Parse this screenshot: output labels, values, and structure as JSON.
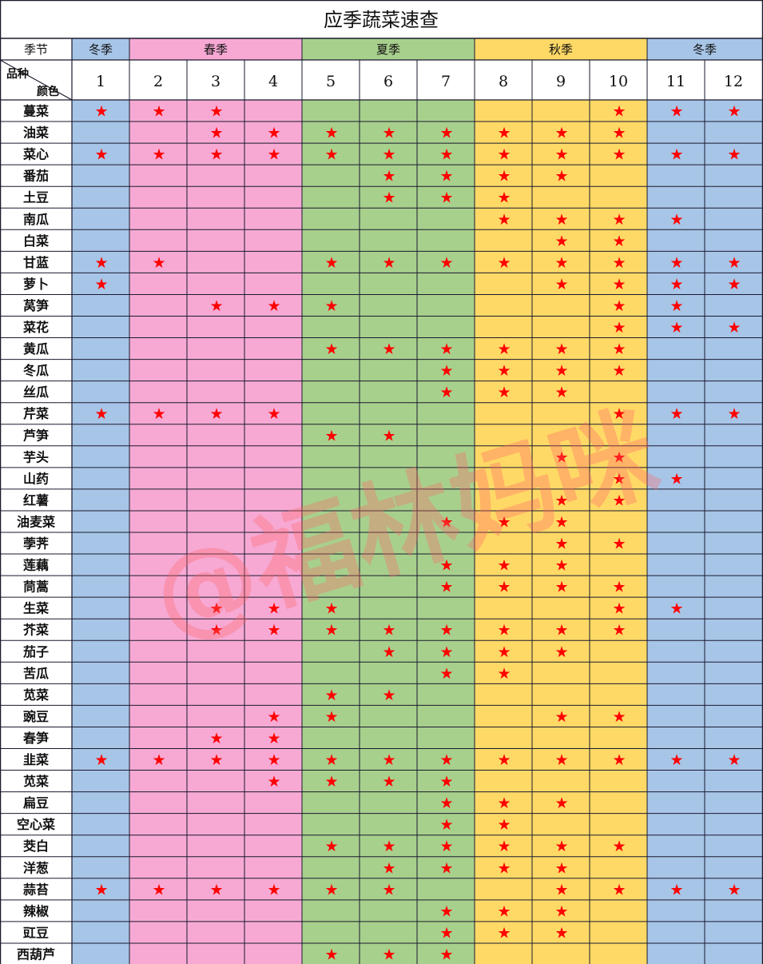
{
  "title": "应季蔬菜速查",
  "header": {
    "season_label": "季节",
    "variety_label": "品种",
    "color_label": "颜色"
  },
  "seasons": [
    {
      "label": "冬季",
      "months": [
        1
      ],
      "color": "#a7c5e7"
    },
    {
      "label": "春季",
      "months": [
        2,
        3,
        4
      ],
      "color": "#f7a9d4"
    },
    {
      "label": "夏季",
      "months": [
        5,
        6,
        7
      ],
      "color": "#a8d08d"
    },
    {
      "label": "秋季",
      "months": [
        8,
        9,
        10
      ],
      "color": "#ffd966"
    },
    {
      "label": "冬季",
      "months": [
        11,
        12
      ],
      "color": "#a7c5e7"
    }
  ],
  "months": [
    "1",
    "2",
    "3",
    "4",
    "5",
    "6",
    "7",
    "8",
    "9",
    "10",
    "11",
    "12"
  ],
  "vegetables": [
    {
      "name": "蔓菜",
      "months": [
        1,
        2,
        3,
        10,
        11,
        12
      ]
    },
    {
      "name": "油菜",
      "months": [
        3,
        4,
        5,
        6,
        7,
        8,
        9,
        10
      ]
    },
    {
      "name": "菜心",
      "months": [
        1,
        2,
        3,
        4,
        5,
        6,
        7,
        8,
        9,
        10,
        11,
        12
      ]
    },
    {
      "name": "番茄",
      "months": [
        6,
        7,
        8,
        9
      ]
    },
    {
      "name": "土豆",
      "months": [
        6,
        7,
        8
      ]
    },
    {
      "name": "南瓜",
      "months": [
        8,
        9,
        10,
        11
      ]
    },
    {
      "name": "白菜",
      "months": [
        9,
        10
      ]
    },
    {
      "name": "甘蓝",
      "months": [
        1,
        2,
        5,
        6,
        7,
        8,
        9,
        10,
        11,
        12
      ]
    },
    {
      "name": "萝卜",
      "months": [
        1,
        9,
        10,
        11,
        12
      ]
    },
    {
      "name": "莴笋",
      "months": [
        3,
        4,
        5,
        10,
        11
      ]
    },
    {
      "name": "菜花",
      "months": [
        10,
        11,
        12
      ]
    },
    {
      "name": "黄瓜",
      "months": [
        5,
        6,
        7,
        8,
        9,
        10
      ]
    },
    {
      "name": "冬瓜",
      "months": [
        7,
        8,
        9,
        10
      ]
    },
    {
      "name": "丝瓜",
      "months": [
        7,
        8,
        9
      ]
    },
    {
      "name": "芹菜",
      "months": [
        1,
        2,
        3,
        4,
        10,
        11,
        12
      ]
    },
    {
      "name": "芦笋",
      "months": [
        5,
        6
      ]
    },
    {
      "name": "芋头",
      "months": [
        9,
        10
      ]
    },
    {
      "name": "山药",
      "months": [
        10,
        11
      ]
    },
    {
      "name": "红薯",
      "months": [
        9,
        10
      ]
    },
    {
      "name": "油麦菜",
      "months": [
        7,
        8,
        9
      ]
    },
    {
      "name": "荸荠",
      "months": [
        9,
        10
      ]
    },
    {
      "name": "莲藕",
      "months": [
        7,
        8,
        9
      ]
    },
    {
      "name": "茼蒿",
      "months": [
        7,
        8,
        9,
        10
      ]
    },
    {
      "name": "生菜",
      "months": [
        3,
        4,
        5,
        10,
        11
      ]
    },
    {
      "name": "芥菜",
      "months": [
        3,
        4,
        5,
        6,
        7,
        8,
        9,
        10
      ]
    },
    {
      "name": "茄子",
      "months": [
        6,
        7,
        8,
        9
      ]
    },
    {
      "name": "苦瓜",
      "months": [
        7,
        8
      ]
    },
    {
      "name": "苋菜",
      "months": [
        5,
        6
      ]
    },
    {
      "name": "豌豆",
      "months": [
        4,
        5,
        9,
        10
      ]
    },
    {
      "name": "春笋",
      "months": [
        3,
        4
      ]
    },
    {
      "name": "韭菜",
      "months": [
        1,
        2,
        3,
        4,
        5,
        6,
        7,
        8,
        9,
        10,
        11,
        12
      ]
    },
    {
      "name": "苋菜",
      "months": [
        4,
        5,
        6,
        7
      ]
    },
    {
      "name": "扁豆",
      "months": [
        7,
        8,
        9
      ]
    },
    {
      "name": "空心菜",
      "months": [
        7,
        8
      ]
    },
    {
      "name": "茭白",
      "months": [
        5,
        6,
        7,
        8,
        9,
        10
      ]
    },
    {
      "name": "洋葱",
      "months": [
        6,
        7,
        8,
        9
      ]
    },
    {
      "name": "蒜苔",
      "months": [
        1,
        2,
        3,
        4,
        5,
        6,
        9,
        10,
        11,
        12
      ]
    },
    {
      "name": "辣椒",
      "months": [
        7,
        8,
        9
      ]
    },
    {
      "name": "豇豆",
      "months": [
        7,
        8,
        9
      ]
    },
    {
      "name": "西葫芦",
      "months": [
        5,
        6,
        7
      ]
    }
  ],
  "marker_symbol": "★",
  "marker_color": "#ff0000",
  "grid_color": "#1a1a2e",
  "watermark": {
    "text": "@福林妈咪",
    "color": "#ff8080"
  }
}
